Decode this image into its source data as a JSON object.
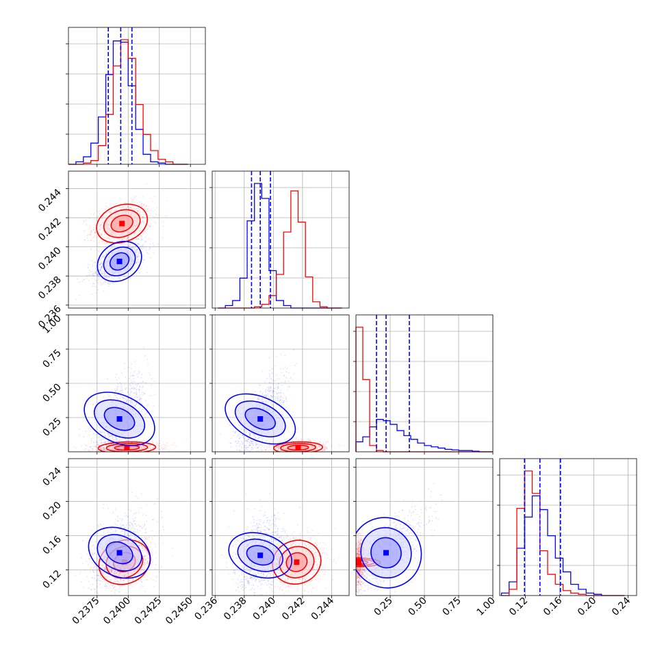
{
  "chart_data": {
    "type": "corner",
    "grid": true,
    "legend": "none",
    "series": [
      {
        "name": "",
        "color": "#0000ff"
      },
      {
        "name": "",
        "color": "#ff0000"
      }
    ],
    "parameters": [
      {
        "ticks": [
          0.2375,
          0.24,
          0.2425,
          0.245
        ],
        "tick_labels": [
          "0.2375",
          "0.2400",
          "0.2425",
          "0.2450"
        ],
        "range": [
          0.2352,
          0.2462
        ]
      },
      {
        "ticks": [
          0.236,
          0.238,
          0.24,
          0.242,
          0.244
        ],
        "tick_labels": [
          "0.236",
          "0.238",
          "0.240",
          "0.242",
          "0.244"
        ],
        "range": [
          0.2358,
          0.2452
        ]
      },
      {
        "ticks": [
          0.25,
          0.5,
          0.75,
          1.0
        ],
        "tick_labels": [
          "0.25",
          "0.50",
          "0.75",
          "1.00"
        ],
        "range": [
          0.0,
          1.0
        ]
      },
      {
        "ticks": [
          0.12,
          0.16,
          0.2,
          0.24
        ],
        "tick_labels": [
          "0.12",
          "0.16",
          "0.20",
          "0.24"
        ],
        "range": [
          0.09,
          0.25
        ]
      }
    ],
    "quantiles_blue": [
      [
        0.2384,
        0.2394,
        0.2403
      ],
      [
        0.2385,
        0.2391,
        0.2398
      ],
      [
        0.15,
        0.22,
        0.39
      ],
      [
        0.119,
        0.137,
        0.161
      ]
    ],
    "histograms": [
      {
        "edges": [
          0.2352,
          0.2358,
          0.2364,
          0.237,
          0.2376,
          0.2382,
          0.2388,
          0.2394,
          0.24,
          0.2406,
          0.2412,
          0.2418,
          0.2424,
          0.243,
          0.2436,
          0.2442,
          0.2448
        ],
        "blue": [
          0.0,
          0.02,
          0.06,
          0.17,
          0.38,
          0.72,
          0.99,
          0.98,
          0.63,
          0.28,
          0.08,
          0.02,
          0.01,
          0.0,
          0.0,
          0.0
        ],
        "red": [
          0.0,
          0.0,
          0.01,
          0.03,
          0.15,
          0.4,
          0.79,
          1.0,
          0.85,
          0.48,
          0.24,
          0.11,
          0.04,
          0.02,
          0.0,
          0.0
        ]
      },
      {
        "edges": [
          0.2362,
          0.2367,
          0.2372,
          0.2377,
          0.2382,
          0.2387,
          0.2392,
          0.2397,
          0.2402,
          0.2407,
          0.2412,
          0.2417,
          0.2422,
          0.2427,
          0.2432,
          0.2437,
          0.2442,
          0.2447
        ],
        "blue": [
          0.0,
          0.02,
          0.06,
          0.24,
          0.7,
          1.0,
          0.88,
          0.3,
          0.06,
          0.02,
          0.0,
          0.0,
          0.0,
          0.0,
          0.0,
          0.0,
          0.0
        ],
        "red": [
          0.0,
          0.0,
          0.0,
          0.0,
          0.0,
          0.01,
          0.03,
          0.1,
          0.27,
          0.61,
          0.94,
          0.69,
          0.25,
          0.05,
          0.01,
          0.0,
          0.0
        ]
      },
      {
        "edges": [
          0.0,
          0.05,
          0.1,
          0.15,
          0.2,
          0.25,
          0.3,
          0.35,
          0.4,
          0.45,
          0.5,
          0.55,
          0.6,
          0.65,
          0.7,
          0.75,
          0.8,
          0.85,
          0.9,
          0.95,
          1.0
        ],
        "blue": [
          0.08,
          0.12,
          0.2,
          0.26,
          0.25,
          0.22,
          0.17,
          0.13,
          0.1,
          0.07,
          0.05,
          0.04,
          0.03,
          0.02,
          0.015,
          0.01,
          0.01,
          0.005,
          0.0,
          0.0
        ],
        "red": [
          1.0,
          0.58,
          0.05,
          0.01,
          0.0,
          0.0,
          0.0,
          0.0,
          0.0,
          0.0,
          0.0,
          0.0,
          0.0,
          0.0,
          0.0,
          0.0,
          0.0,
          0.0,
          0.0,
          0.0
        ]
      },
      {
        "edges": [
          0.092,
          0.101,
          0.11,
          0.119,
          0.128,
          0.137,
          0.146,
          0.155,
          0.164,
          0.173,
          0.182,
          0.191,
          0.2,
          0.209,
          0.218,
          0.227,
          0.236
        ],
        "blue": [
          0.02,
          0.11,
          0.38,
          0.63,
          0.8,
          0.69,
          0.48,
          0.3,
          0.19,
          0.09,
          0.05,
          0.02,
          0.01,
          0.0,
          0.0,
          0.0
        ],
        "red": [
          0.0,
          0.05,
          0.7,
          1.0,
          0.82,
          0.36,
          0.17,
          0.09,
          0.04,
          0.02,
          0.01,
          0.0,
          0.0,
          0.0,
          0.0,
          0.0
        ]
      }
    ],
    "pair_centers": [
      {
        "row": 1,
        "col": 0,
        "blue": {
          "x": 0.2393,
          "y": 0.239,
          "sx": 0.0009,
          "sy": 0.0006,
          "rho": 0.6
        },
        "red": {
          "x": 0.2395,
          "y": 0.2416,
          "sx": 0.001,
          "sy": 0.0006,
          "rho": 0.3
        }
      },
      {
        "row": 2,
        "col": 0,
        "blue": {
          "x": 0.2393,
          "y": 0.24,
          "sx": 0.0009,
          "sy": 0.13,
          "rho": 0.6
        },
        "red": {
          "x": 0.2399,
          "y": 0.03,
          "sx": 0.0011,
          "sy": 0.02,
          "rho": 0.1
        }
      },
      {
        "row": 2,
        "col": 1,
        "blue": {
          "x": 0.2391,
          "y": 0.24,
          "sx": 0.0007,
          "sy": 0.13,
          "rho": 0.7
        },
        "red": {
          "x": 0.2417,
          "y": 0.03,
          "sx": 0.0008,
          "sy": 0.02,
          "rho": 0.1
        }
      },
      {
        "row": 3,
        "col": 0,
        "blue": {
          "x": 0.2393,
          "y": 0.14,
          "sx": 0.0009,
          "sy": 0.018,
          "rho": 0.4
        },
        "red": {
          "x": 0.2397,
          "y": 0.129,
          "sx": 0.001,
          "sy": 0.012,
          "rho": 0.2
        }
      },
      {
        "row": 3,
        "col": 1,
        "blue": {
          "x": 0.2391,
          "y": 0.137,
          "sx": 0.0007,
          "sy": 0.018,
          "rho": 0.3
        },
        "red": {
          "x": 0.2416,
          "y": 0.129,
          "sx": 0.0008,
          "sy": 0.012,
          "rho": 0.1
        }
      },
      {
        "row": 3,
        "col": 2,
        "blue": {
          "x": 0.22,
          "y": 0.14,
          "sx": 0.12,
          "sy": 0.02,
          "rho": 0.75
        },
        "red": {
          "x": 0.02,
          "y": 0.129,
          "sx": 0.015,
          "sy": 0.012,
          "rho": 0.1
        }
      }
    ]
  }
}
